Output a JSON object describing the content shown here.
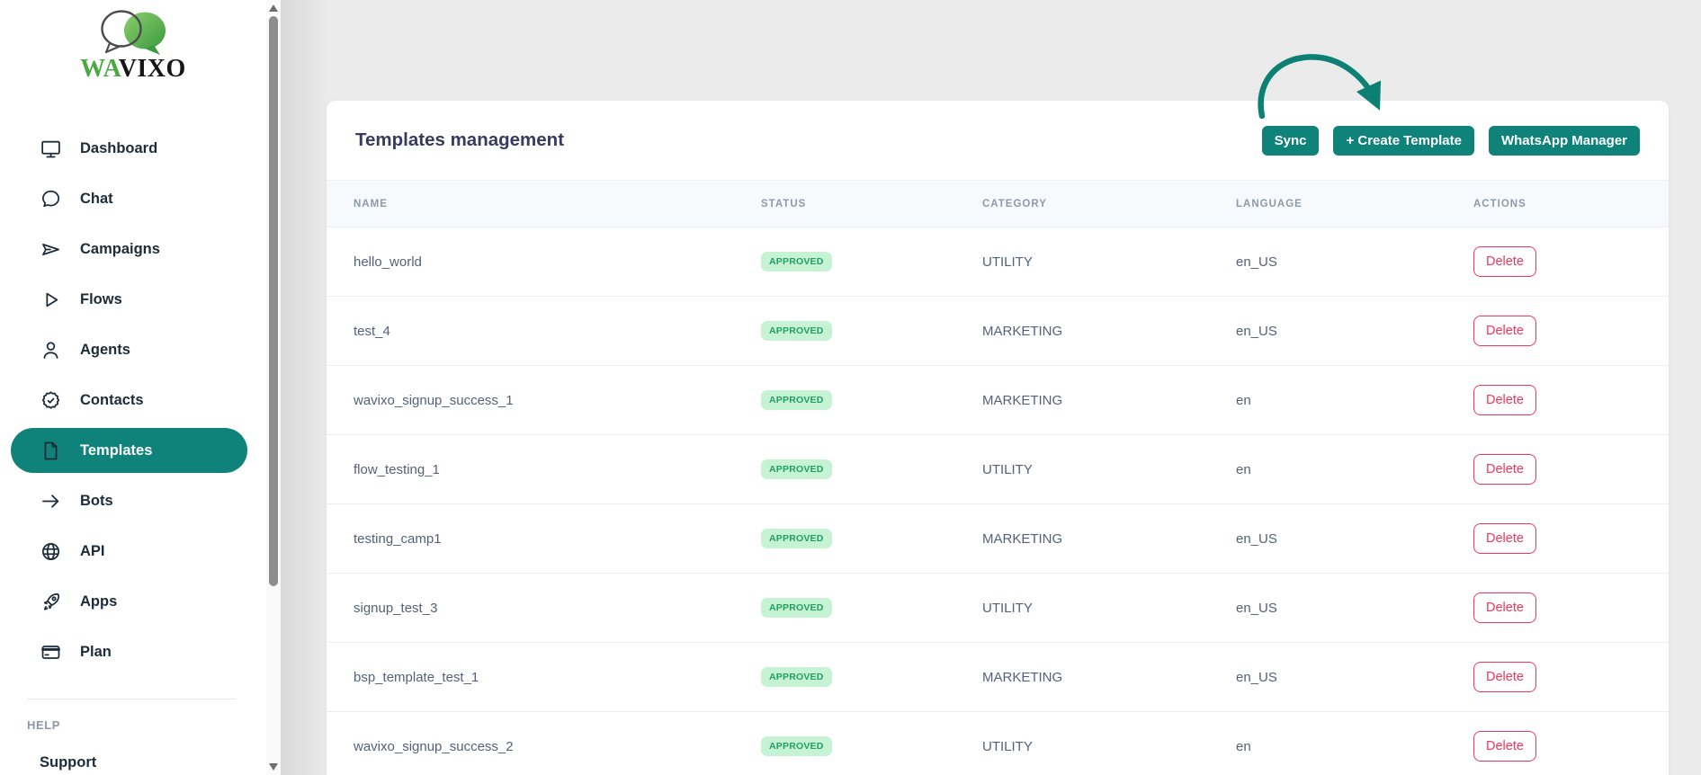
{
  "brand": {
    "wordmark_green": "WA",
    "wordmark_dark": "VIXO"
  },
  "sidebar": {
    "items": [
      {
        "label": "Dashboard",
        "icon": "monitor-icon"
      },
      {
        "label": "Chat",
        "icon": "chat-bubble-icon"
      },
      {
        "label": "Campaigns",
        "icon": "send-icon"
      },
      {
        "label": "Flows",
        "icon": "play-icon"
      },
      {
        "label": "Agents",
        "icon": "user-icon"
      },
      {
        "label": "Contacts",
        "icon": "badge-check-icon"
      },
      {
        "label": "Templates",
        "icon": "file-icon",
        "active": true
      },
      {
        "label": "Bots",
        "icon": "arrow-right-icon"
      },
      {
        "label": "API",
        "icon": "globe-icon"
      },
      {
        "label": "Apps",
        "icon": "rocket-icon"
      },
      {
        "label": "Plan",
        "icon": "credit-card-icon"
      }
    ],
    "help": {
      "heading": "HELP",
      "items": [
        {
          "label": "Support"
        }
      ]
    }
  },
  "page": {
    "title": "Templates management",
    "actions": [
      {
        "label": "Sync",
        "name": "sync-button"
      },
      {
        "label": "+ Create Template",
        "name": "create-template-button"
      },
      {
        "label": "WhatsApp Manager",
        "name": "whatsapp-manager-button"
      }
    ]
  },
  "table": {
    "columns": [
      "NAME",
      "STATUS",
      "CATEGORY",
      "LANGUAGE",
      "ACTIONS"
    ],
    "rows": [
      {
        "name": "hello_world",
        "status": "APPROVED",
        "category": "UTILITY",
        "language": "en_US",
        "action": "Delete"
      },
      {
        "name": "test_4",
        "status": "APPROVED",
        "category": "MARKETING",
        "language": "en_US",
        "action": "Delete"
      },
      {
        "name": "wavixo_signup_success_1",
        "status": "APPROVED",
        "category": "MARKETING",
        "language": "en",
        "action": "Delete"
      },
      {
        "name": "flow_testing_1",
        "status": "APPROVED",
        "category": "UTILITY",
        "language": "en",
        "action": "Delete"
      },
      {
        "name": "testing_camp1",
        "status": "APPROVED",
        "category": "MARKETING",
        "language": "en_US",
        "action": "Delete"
      },
      {
        "name": "signup_test_3",
        "status": "APPROVED",
        "category": "UTILITY",
        "language": "en_US",
        "action": "Delete"
      },
      {
        "name": "bsp_template_test_1",
        "status": "APPROVED",
        "category": "MARKETING",
        "language": "en_US",
        "action": "Delete"
      },
      {
        "name": "wavixo_signup_success_2",
        "status": "APPROVED",
        "category": "UTILITY",
        "language": "en",
        "action": "Delete"
      }
    ]
  },
  "colors": {
    "accent_teal": "#0F837A",
    "annotation_arrow": "#0C8173",
    "badge_bg": "#C6F3D4",
    "badge_text": "#21A061",
    "delete_red": "#F5365C",
    "brand_green": "#4BA843",
    "sidebar_text": "#1D2B3A",
    "title_text": "#383B5E"
  }
}
